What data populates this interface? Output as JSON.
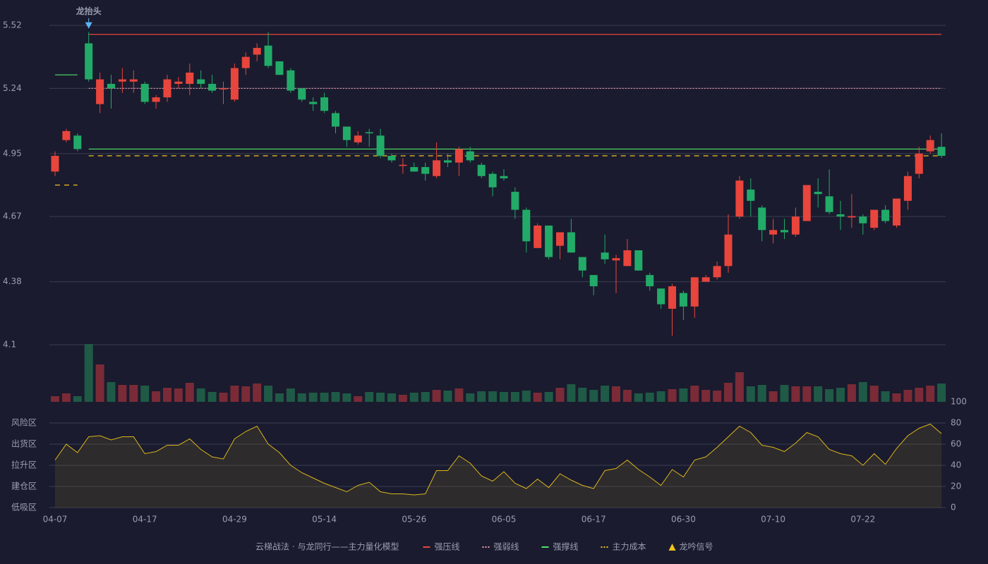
{
  "chart_data": {
    "type": "candlestick",
    "categories": [
      "04-07",
      null,
      null,
      null,
      null,
      null,
      null,
      null,
      "04-17",
      null,
      null,
      null,
      null,
      null,
      null,
      null,
      "04-29",
      null,
      null,
      null,
      null,
      null,
      null,
      null,
      "05-14",
      null,
      null,
      null,
      null,
      null,
      null,
      null,
      "05-26",
      null,
      null,
      null,
      null,
      null,
      null,
      null,
      "06-05",
      null,
      null,
      null,
      null,
      null,
      null,
      null,
      "06-17",
      null,
      null,
      null,
      null,
      null,
      null,
      null,
      "06-30",
      null,
      null,
      null,
      null,
      null,
      null,
      null,
      "07-10",
      null,
      null,
      null,
      null,
      null,
      null,
      null,
      "07-22",
      null,
      null,
      null,
      null,
      null,
      null,
      null
    ],
    "open": [
      4.87,
      5.01,
      5.03,
      5.44,
      5.17,
      5.26,
      5.27,
      5.27,
      5.26,
      5.18,
      5.2,
      5.26,
      5.26,
      5.28,
      5.26,
      5.24,
      5.19,
      5.33,
      5.39,
      5.43,
      5.36,
      5.32,
      5.24,
      5.18,
      5.2,
      5.13,
      5.07,
      5.0,
      5.045,
      5.03,
      4.94,
      4.9,
      4.89,
      4.89,
      4.85,
      4.92,
      4.91,
      4.96,
      4.9,
      4.86,
      4.85,
      4.78,
      4.7,
      4.53,
      4.63,
      4.54,
      4.6,
      4.49,
      4.41,
      4.51,
      4.475,
      4.45,
      4.52,
      4.41,
      4.35,
      4.26,
      4.33,
      4.27,
      4.38,
      4.4,
      4.45,
      4.67,
      4.79,
      4.71,
      4.59,
      4.61,
      4.59,
      4.65,
      4.78,
      4.76,
      4.68,
      4.666,
      4.67,
      4.62,
      4.7,
      4.63,
      4.74,
      4.86,
      4.96,
      4.98
    ],
    "high": [
      4.96,
      5.06,
      5.04,
      5.49,
      5.31,
      5.3,
      5.33,
      5.32,
      5.27,
      5.21,
      5.3,
      5.29,
      5.35,
      5.32,
      5.3,
      5.27,
      5.35,
      5.4,
      5.44,
      5.49,
      5.36,
      5.33,
      5.24,
      5.2,
      5.22,
      5.14,
      5.07,
      5.05,
      5.06,
      5.06,
      4.95,
      4.93,
      4.91,
      4.91,
      5.0,
      4.95,
      4.98,
      4.98,
      4.91,
      4.87,
      4.88,
      4.8,
      4.71,
      4.64,
      4.63,
      4.6,
      4.66,
      4.49,
      4.41,
      4.59,
      4.5,
      4.57,
      4.52,
      4.42,
      4.35,
      4.37,
      4.34,
      4.4,
      4.41,
      4.47,
      4.68,
      4.85,
      4.84,
      4.72,
      4.66,
      4.66,
      4.71,
      4.81,
      4.84,
      4.88,
      4.74,
      4.77,
      4.68,
      4.7,
      4.72,
      4.75,
      4.87,
      4.98,
      5.03,
      5.04
    ],
    "low": [
      4.85,
      5.0,
      4.96,
      5.27,
      5.13,
      5.15,
      5.22,
      5.22,
      5.17,
      5.15,
      5.18,
      5.24,
      5.21,
      5.24,
      5.22,
      5.17,
      5.18,
      5.3,
      5.36,
      5.33,
      5.3,
      5.22,
      5.18,
      5.14,
      5.13,
      5.04,
      4.98,
      4.99,
      4.98,
      4.93,
      4.91,
      4.86,
      4.87,
      4.83,
      4.84,
      4.89,
      4.85,
      4.91,
      4.84,
      4.76,
      4.83,
      4.66,
      4.51,
      4.53,
      4.48,
      4.48,
      4.51,
      4.4,
      4.32,
      4.46,
      4.33,
      4.45,
      4.43,
      4.34,
      4.26,
      4.14,
      4.21,
      4.22,
      4.38,
      4.39,
      4.42,
      4.66,
      4.67,
      4.56,
      4.55,
      4.57,
      4.58,
      4.65,
      4.71,
      4.68,
      4.61,
      4.62,
      4.59,
      4.61,
      4.64,
      4.62,
      4.7,
      4.84,
      4.95,
      4.93
    ],
    "close": [
      4.94,
      5.05,
      4.97,
      5.28,
      5.28,
      5.24,
      5.28,
      5.28,
      5.18,
      5.2,
      5.28,
      5.27,
      5.31,
      5.26,
      5.23,
      5.24,
      5.33,
      5.38,
      5.42,
      5.34,
      5.3,
      5.23,
      5.19,
      5.17,
      5.14,
      5.07,
      5.01,
      5.03,
      5.04,
      4.94,
      4.92,
      4.9,
      4.87,
      4.86,
      4.92,
      4.91,
      4.97,
      4.92,
      4.85,
      4.8,
      4.84,
      4.7,
      4.56,
      4.63,
      4.49,
      4.6,
      4.51,
      4.43,
      4.36,
      4.48,
      4.485,
      4.52,
      4.43,
      4.36,
      4.28,
      4.36,
      4.27,
      4.4,
      4.4,
      4.45,
      4.59,
      4.83,
      4.74,
      4.61,
      4.61,
      4.6,
      4.67,
      4.81,
      4.77,
      4.69,
      4.67,
      4.672,
      4.64,
      4.7,
      4.65,
      4.75,
      4.85,
      4.95,
      5.01,
      4.94
    ],
    "up_color": "#e8453c",
    "down_color": "#22ab68",
    "ylim": [
      4.1,
      5.52
    ],
    "yticks": [
      4.1,
      4.38,
      4.67,
      4.95,
      5.24,
      5.52
    ],
    "grid": true,
    "series": [
      {
        "name": "强压线",
        "color": "#e8453c",
        "dash": "solid",
        "values": [
          null,
          null,
          null,
          5.48,
          5.48,
          5.48,
          5.48,
          5.48,
          5.48,
          5.48,
          5.48,
          5.48,
          5.48,
          5.48,
          5.48,
          5.48,
          5.48,
          5.48,
          5.48,
          5.48,
          5.48,
          5.48,
          5.48,
          5.48,
          5.48,
          5.48,
          5.48,
          5.48,
          5.48,
          5.48,
          5.48,
          5.48,
          5.48,
          5.48,
          5.48,
          5.48,
          5.48,
          5.48,
          5.48,
          5.48,
          5.48,
          5.48,
          5.48,
          5.48,
          5.48,
          5.48,
          5.48,
          5.48,
          5.48,
          5.48,
          5.48,
          5.48,
          5.48,
          5.48,
          5.48,
          5.48,
          5.48,
          5.48,
          5.48,
          5.48,
          5.48,
          5.48,
          5.48,
          5.48,
          5.48,
          5.48,
          5.48,
          5.48,
          5.48,
          5.48,
          5.48,
          5.48,
          5.48,
          5.48,
          5.48,
          5.48,
          5.48,
          5.48,
          5.48,
          5.48
        ]
      },
      {
        "name": "强弱线",
        "color": "#f39bb0",
        "dash": "dotted",
        "values": [
          null,
          null,
          null,
          5.24,
          5.24,
          5.24,
          5.24,
          5.24,
          5.24,
          5.24,
          5.24,
          5.24,
          5.24,
          5.24,
          5.24,
          5.24,
          5.24,
          5.24,
          5.24,
          5.24,
          5.24,
          5.24,
          5.24,
          5.24,
          5.24,
          5.24,
          5.24,
          5.24,
          5.24,
          5.24,
          5.24,
          5.24,
          5.24,
          5.24,
          5.24,
          5.24,
          5.24,
          5.24,
          5.24,
          5.24,
          5.24,
          5.24,
          5.24,
          5.24,
          5.24,
          5.24,
          5.24,
          5.24,
          5.24,
          5.24,
          5.24,
          5.24,
          5.24,
          5.24,
          5.24,
          5.24,
          5.24,
          5.24,
          5.24,
          5.24,
          5.24,
          5.24,
          5.24,
          5.24,
          5.24,
          5.24,
          5.24,
          5.24,
          5.24,
          5.24,
          5.24,
          5.24,
          5.24,
          5.24,
          5.24,
          5.24,
          5.24,
          5.24,
          5.24,
          5.24
        ]
      },
      {
        "name": "强撑线",
        "color": "#4ee36a",
        "dash": "solid",
        "values": [
          5.3,
          5.3,
          5.3,
          4.97,
          4.97,
          4.97,
          4.97,
          4.97,
          4.97,
          4.97,
          4.97,
          4.97,
          4.97,
          4.97,
          4.97,
          4.97,
          4.97,
          4.97,
          4.97,
          4.97,
          4.97,
          4.97,
          4.97,
          4.97,
          4.97,
          4.97,
          4.97,
          4.97,
          4.97,
          4.97,
          4.97,
          4.97,
          4.97,
          4.97,
          4.97,
          4.97,
          4.97,
          4.97,
          4.97,
          4.97,
          4.97,
          4.97,
          4.97,
          4.97,
          4.97,
          4.97,
          4.97,
          4.97,
          4.97,
          4.97,
          4.97,
          4.97,
          4.97,
          4.97,
          4.97,
          4.97,
          4.97,
          4.97,
          4.97,
          4.97,
          4.97,
          4.97,
          4.97,
          4.97,
          4.97,
          4.97,
          4.97,
          4.97,
          4.97,
          4.97,
          4.97,
          4.97,
          4.97,
          4.97,
          4.97,
          4.97,
          4.97,
          4.97,
          4.97,
          4.97
        ]
      },
      {
        "name": "主力成本",
        "color": "#f2c21b",
        "dash": "dashed",
        "values": [
          4.81,
          4.81,
          4.81,
          4.94,
          4.94,
          4.94,
          4.94,
          4.94,
          4.94,
          4.94,
          4.94,
          4.94,
          4.94,
          4.94,
          4.94,
          4.94,
          4.94,
          4.94,
          4.94,
          4.94,
          4.94,
          4.94,
          4.94,
          4.94,
          4.94,
          4.94,
          4.94,
          4.94,
          4.94,
          4.94,
          4.94,
          4.94,
          4.94,
          4.94,
          4.94,
          4.94,
          4.94,
          4.94,
          4.94,
          4.94,
          4.94,
          4.94,
          4.94,
          4.94,
          4.94,
          4.94,
          4.94,
          4.94,
          4.94,
          4.94,
          4.94,
          4.94,
          4.94,
          4.94,
          4.94,
          4.94,
          4.94,
          4.94,
          4.94,
          4.94,
          4.94,
          4.94,
          4.94,
          4.94,
          4.94,
          4.94,
          4.94,
          4.94,
          4.94,
          4.94,
          4.94,
          4.94,
          4.94,
          4.94,
          4.94,
          4.94,
          4.94,
          4.94,
          4.94,
          4.94
        ]
      }
    ],
    "signal": {
      "name": "龙吟信号",
      "color": "#f2c21b"
    },
    "annotation": {
      "text": "龙抬头",
      "index": 3,
      "color": "#5fb4f5"
    },
    "volume": {
      "ylim": [
        0,
        82
      ],
      "up_color": "#7a2b37",
      "down_color": "#1f5a46",
      "values": [
        8,
        12,
        8,
        82,
        53,
        28,
        24,
        24,
        23,
        15,
        20,
        19,
        27,
        19,
        14,
        13,
        23,
        22,
        26,
        23,
        12,
        19,
        12,
        13,
        13,
        14,
        12,
        8,
        14,
        13,
        12,
        10,
        13,
        14,
        17,
        16,
        19,
        12,
        15,
        15,
        14,
        14,
        16,
        13,
        14,
        20,
        25,
        20,
        17,
        23,
        22,
        17,
        12,
        13,
        15,
        18,
        19,
        23,
        17,
        16,
        27,
        42,
        22,
        24,
        15,
        24,
        22,
        22,
        22,
        18,
        20,
        25,
        28,
        23,
        15,
        12,
        17,
        20,
        23,
        26
      ]
    },
    "indicator": {
      "color": "#d9b51c",
      "ylim": [
        0,
        100
      ],
      "y2ticks": [
        0,
        20,
        40,
        60,
        80,
        100
      ],
      "y2tick_colors": [
        "#e8453c",
        "#f08a30",
        "#4f9cf5",
        "#e04ae0",
        "#f0a030",
        "#4ee36a"
      ],
      "zones": [
        {
          "value": 80,
          "label": "风险区",
          "color": "#f0a030"
        },
        {
          "value": 60,
          "label": "出货区",
          "color": "#e04ae0"
        },
        {
          "value": 40,
          "label": "拉升区",
          "color": "#4f9cf5"
        },
        {
          "value": 20,
          "label": "建仓区",
          "color": "#f06a40"
        },
        {
          "value": 0,
          "label": "低吸区",
          "color": "#e8453c"
        }
      ],
      "values": [
        45,
        60,
        52,
        67,
        68,
        64,
        67,
        67,
        51,
        53,
        59,
        59,
        65,
        55,
        48,
        46,
        65,
        72,
        77,
        60,
        52,
        40,
        33,
        28,
        23,
        19,
        15,
        21,
        24,
        15,
        13,
        13,
        12,
        13,
        35,
        35,
        49,
        42,
        30,
        25,
        34,
        23,
        18,
        27,
        19,
        32,
        26,
        21,
        18,
        35,
        37,
        45,
        36,
        29,
        21,
        36,
        29,
        45,
        48,
        57,
        67,
        77,
        71,
        59,
        57,
        53,
        61,
        71,
        67,
        55,
        51,
        49,
        40,
        51,
        41,
        56,
        68,
        75,
        79,
        70
      ]
    },
    "legend_title": "云梯战法 · 与龙同行——主力量化模型"
  }
}
